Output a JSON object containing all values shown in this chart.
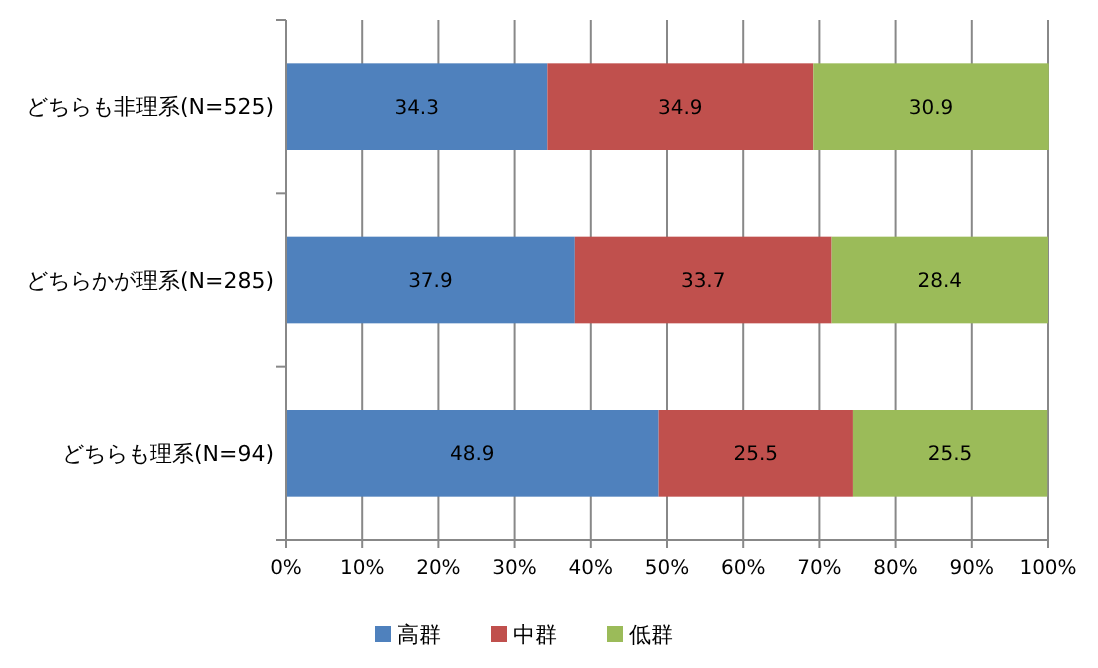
{
  "chart_data": {
    "type": "bar",
    "orientation": "horizontal",
    "stacked": true,
    "data_labels": true,
    "grid": "x",
    "legend": "bottom",
    "categories": [
      "どちらも非理系(N=525)",
      "どちらかが理系(N=285)",
      "どちらも理系(N=94)"
    ],
    "series": [
      {
        "name": "高群",
        "color": "#4f81bd",
        "values": [
          34.3,
          37.9,
          48.9
        ]
      },
      {
        "name": "中群",
        "color": "#c0504d",
        "values": [
          34.9,
          33.7,
          25.5
        ]
      },
      {
        "name": "低群",
        "color": "#9bbb59",
        "values": [
          30.9,
          28.4,
          25.5
        ]
      }
    ],
    "xlim": [
      0,
      100
    ],
    "xticks": [
      {
        "value": 0,
        "label": "0%"
      },
      {
        "value": 10,
        "label": "10%"
      },
      {
        "value": 20,
        "label": "20%"
      },
      {
        "value": 30,
        "label": "30%"
      },
      {
        "value": 40,
        "label": "40%"
      },
      {
        "value": 50,
        "label": "50%"
      },
      {
        "value": 60,
        "label": "60%"
      },
      {
        "value": 70,
        "label": "70%"
      },
      {
        "value": 80,
        "label": "80%"
      },
      {
        "value": 90,
        "label": "90%"
      },
      {
        "value": 100,
        "label": "100%"
      }
    ]
  }
}
